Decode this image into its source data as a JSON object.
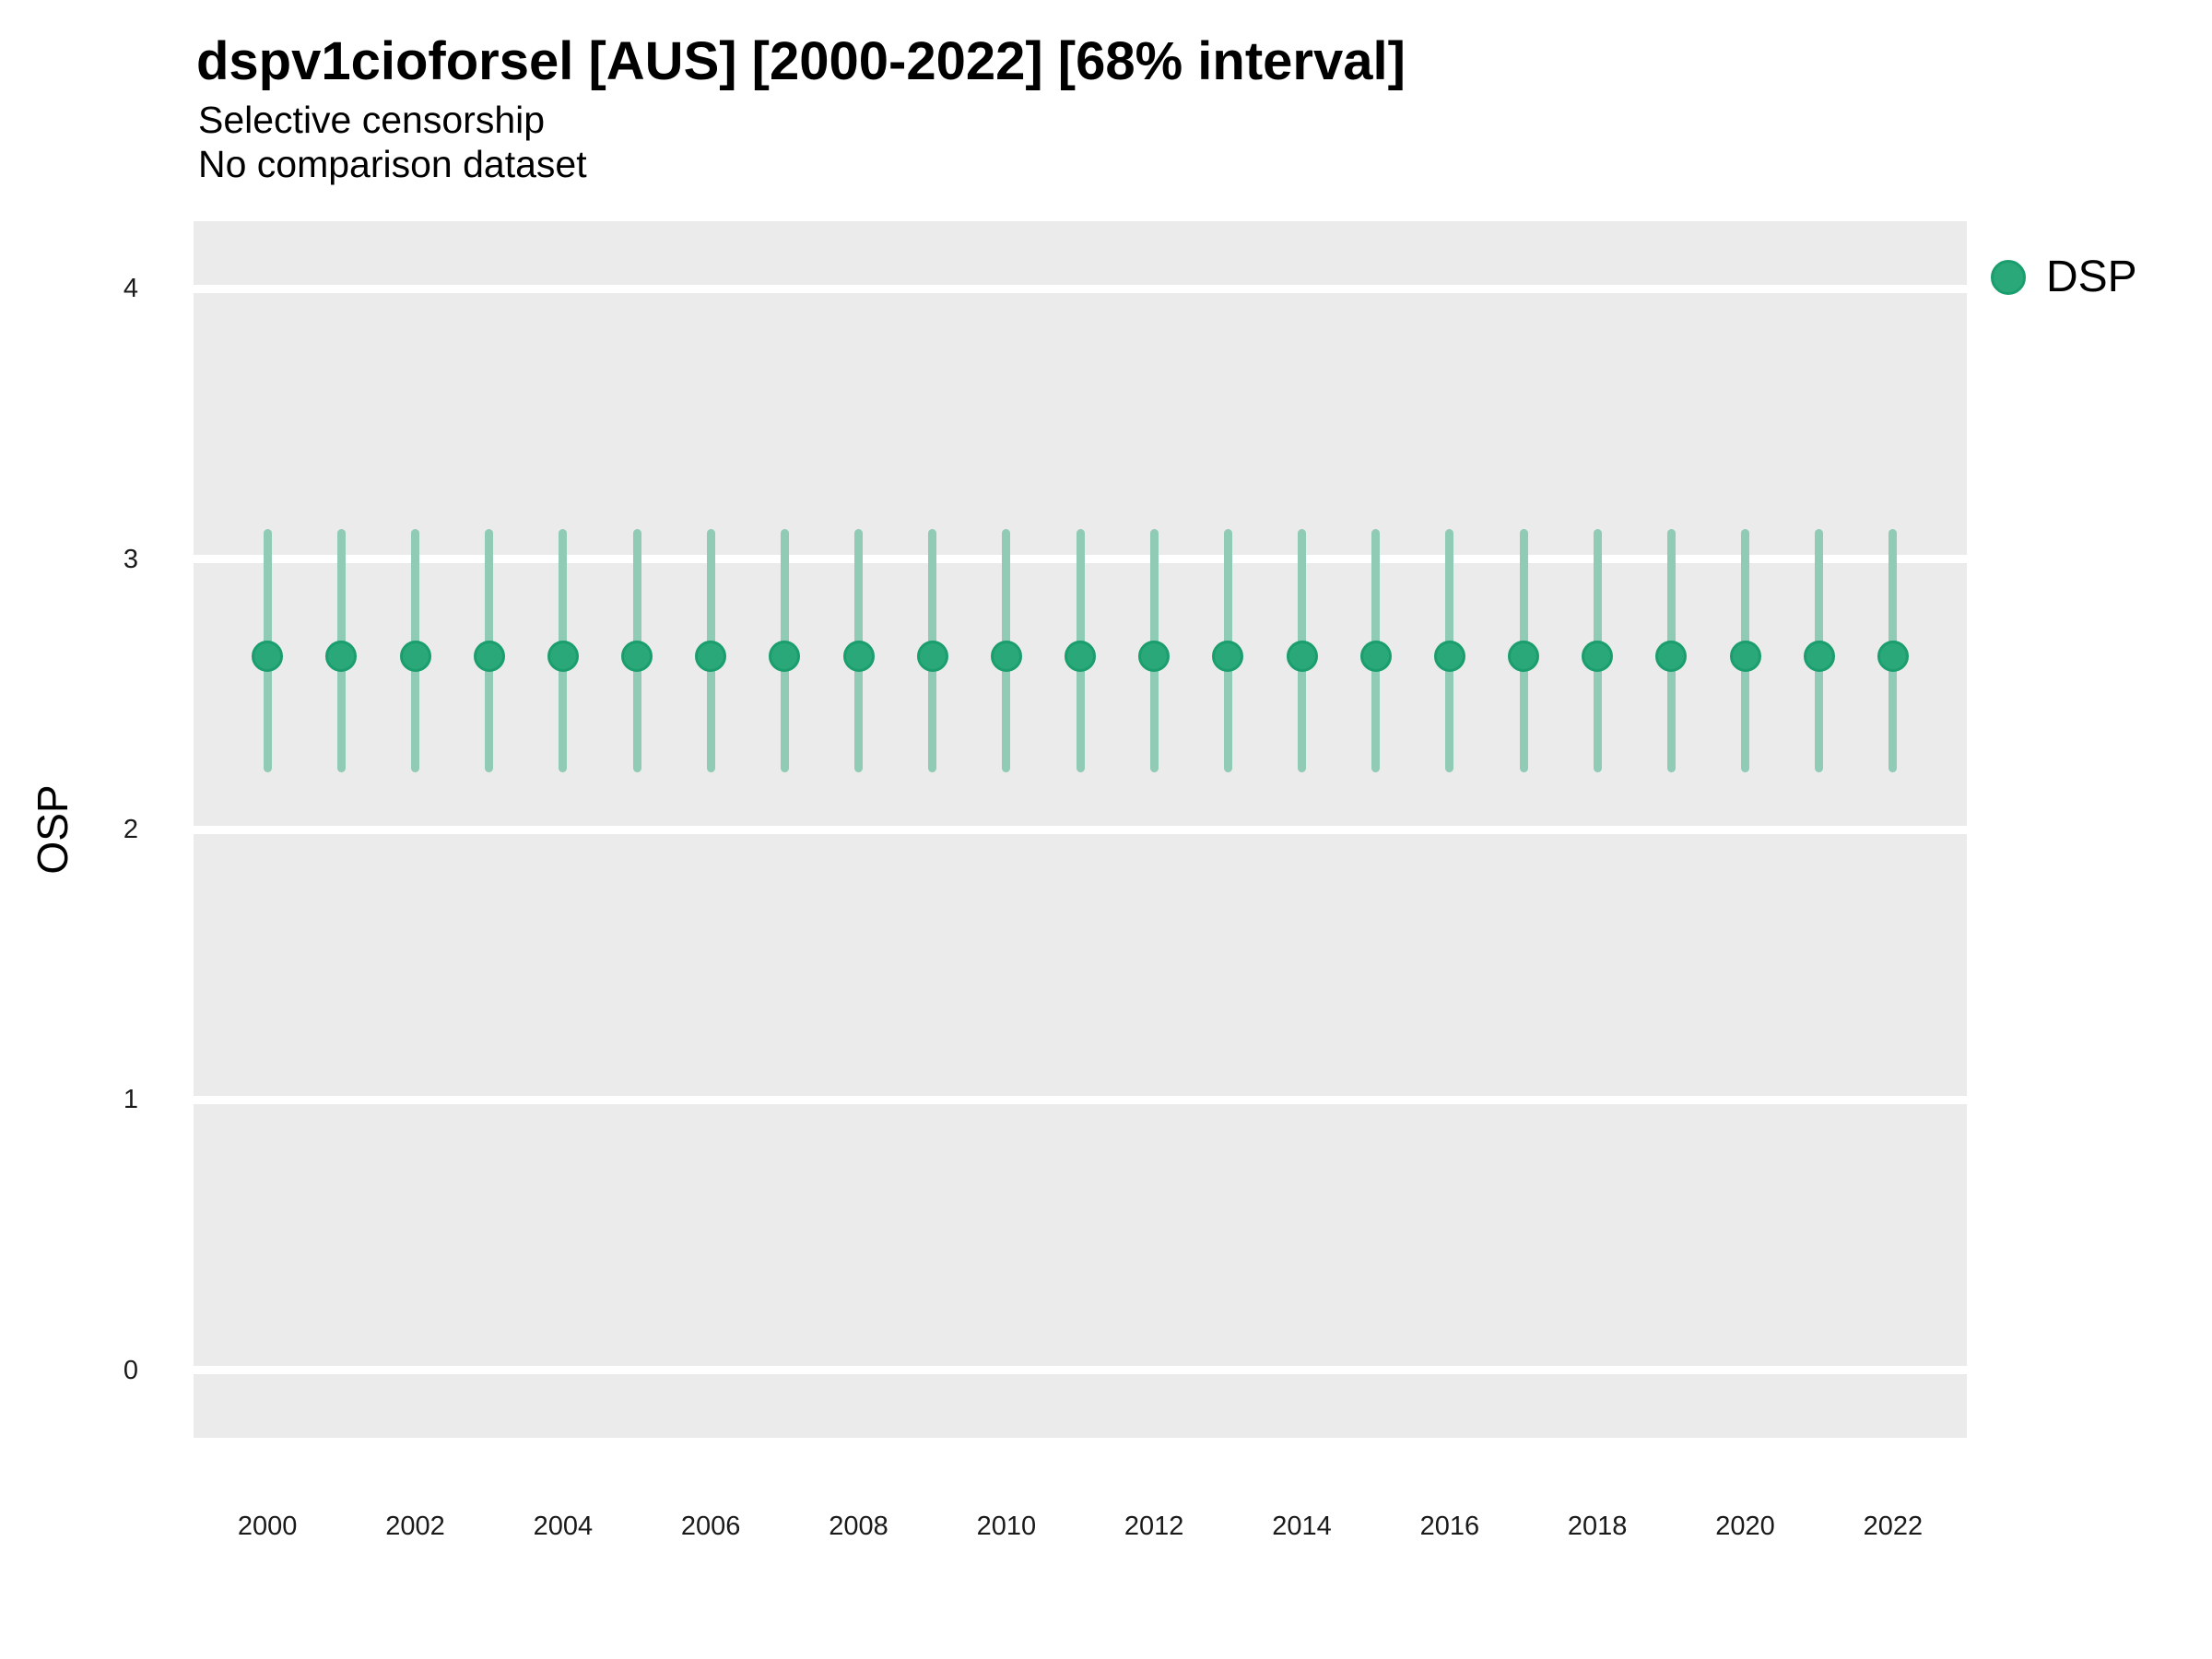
{
  "header": {
    "title": "dspv1cioforsel [AUS] [2000-2022] [68% interval]",
    "subtitle1": "Selective censorship",
    "subtitle2": "No comparison dataset"
  },
  "axes": {
    "y_label": "OSP",
    "y_ticks": [
      4,
      3,
      2,
      1,
      0
    ],
    "x_ticks": [
      2000,
      2002,
      2004,
      2006,
      2008,
      2010,
      2012,
      2014,
      2016,
      2018,
      2020,
      2022
    ]
  },
  "legend": {
    "items": [
      {
        "label": "DSP",
        "marker": "circle-icon",
        "color": "#2AA87A"
      }
    ]
  },
  "colors": {
    "panel_bg": "#EBEBEB",
    "gridline": "#FFFFFF",
    "interval_line": "#8FCBB5",
    "point_fill": "#2AA87A",
    "point_stroke": "#1B9E6E",
    "text": "#000000",
    "tick_text": "#1A1A1A"
  },
  "chart_data": {
    "type": "scatter",
    "subtype": "pointrange",
    "title": "dspv1cioforsel [AUS] [2000-2022] [68% interval]",
    "subtitle": "Selective censorship",
    "subtitle2": "No comparison dataset",
    "xlabel": "",
    "ylabel": "OSP",
    "interval_label": "68% interval",
    "xlim": [
      1999,
      2023
    ],
    "ylim": [
      -0.25,
      4.25
    ],
    "grid": "horizontal-major-only",
    "legend_position": "top-right",
    "series_name": "DSP",
    "points": [
      {
        "year": 2000,
        "mid": 2.64,
        "lo": 2.21,
        "hi": 3.11
      },
      {
        "year": 2001,
        "mid": 2.64,
        "lo": 2.21,
        "hi": 3.11
      },
      {
        "year": 2002,
        "mid": 2.64,
        "lo": 2.21,
        "hi": 3.11
      },
      {
        "year": 2003,
        "mid": 2.64,
        "lo": 2.21,
        "hi": 3.11
      },
      {
        "year": 2004,
        "mid": 2.64,
        "lo": 2.21,
        "hi": 3.11
      },
      {
        "year": 2005,
        "mid": 2.64,
        "lo": 2.21,
        "hi": 3.11
      },
      {
        "year": 2006,
        "mid": 2.64,
        "lo": 2.21,
        "hi": 3.11
      },
      {
        "year": 2007,
        "mid": 2.64,
        "lo": 2.21,
        "hi": 3.11
      },
      {
        "year": 2008,
        "mid": 2.64,
        "lo": 2.21,
        "hi": 3.11
      },
      {
        "year": 2009,
        "mid": 2.64,
        "lo": 2.21,
        "hi": 3.11
      },
      {
        "year": 2010,
        "mid": 2.64,
        "lo": 2.21,
        "hi": 3.11
      },
      {
        "year": 2011,
        "mid": 2.64,
        "lo": 2.21,
        "hi": 3.11
      },
      {
        "year": 2012,
        "mid": 2.64,
        "lo": 2.21,
        "hi": 3.11
      },
      {
        "year": 2013,
        "mid": 2.64,
        "lo": 2.21,
        "hi": 3.11
      },
      {
        "year": 2014,
        "mid": 2.64,
        "lo": 2.21,
        "hi": 3.11
      },
      {
        "year": 2015,
        "mid": 2.64,
        "lo": 2.21,
        "hi": 3.11
      },
      {
        "year": 2016,
        "mid": 2.64,
        "lo": 2.21,
        "hi": 3.11
      },
      {
        "year": 2017,
        "mid": 2.64,
        "lo": 2.21,
        "hi": 3.11
      },
      {
        "year": 2018,
        "mid": 2.64,
        "lo": 2.21,
        "hi": 3.11
      },
      {
        "year": 2019,
        "mid": 2.64,
        "lo": 2.21,
        "hi": 3.11
      },
      {
        "year": 2020,
        "mid": 2.64,
        "lo": 2.21,
        "hi": 3.11
      },
      {
        "year": 2021,
        "mid": 2.64,
        "lo": 2.21,
        "hi": 3.11
      },
      {
        "year": 2022,
        "mid": 2.64,
        "lo": 2.21,
        "hi": 3.11
      }
    ]
  }
}
